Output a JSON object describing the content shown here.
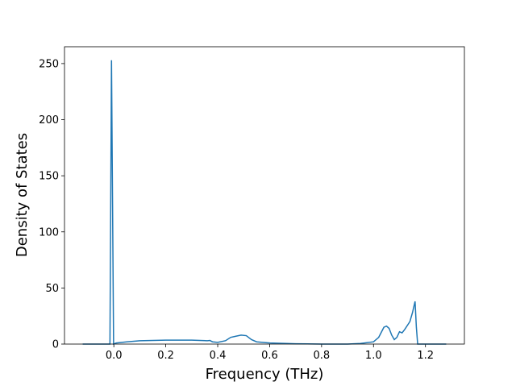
{
  "chart_data": {
    "type": "line",
    "xlabel": "Frequency (THz)",
    "ylabel": "Density of States",
    "x": [
      -0.12,
      -0.015,
      -0.009,
      -0.001,
      0.01,
      0.05,
      0.1,
      0.2,
      0.3,
      0.36,
      0.37,
      0.38,
      0.4,
      0.43,
      0.45,
      0.47,
      0.49,
      0.51,
      0.53,
      0.55,
      0.6,
      0.7,
      0.8,
      0.9,
      0.95,
      1.0,
      1.02,
      1.04,
      1.05,
      1.06,
      1.07,
      1.08,
      1.09,
      1.1,
      1.11,
      1.12,
      1.14,
      1.15,
      1.16,
      1.165,
      1.17,
      1.28
    ],
    "series": [
      {
        "color": "#1f77b4",
        "values": [
          0,
          0,
          253,
          0,
          1,
          2,
          3,
          3.5,
          3.5,
          3,
          3.2,
          2,
          1.5,
          3,
          6,
          7,
          8,
          7.5,
          4,
          2,
          1,
          0.3,
          0,
          0,
          0.5,
          2,
          6,
          15,
          16,
          14,
          8,
          4,
          6,
          11,
          10,
          13,
          20,
          28,
          38,
          15,
          0,
          0
        ]
      }
    ],
    "xlim": [
      -0.19,
      1.35
    ],
    "ylim": [
      0,
      265
    ],
    "xticks": [
      {
        "value": 0,
        "label": "0.0"
      },
      0.2,
      0.4,
      0.6,
      0.8,
      {
        "value": 1,
        "label": "1.0"
      },
      1.2
    ],
    "yticks": [
      0,
      50,
      100,
      150,
      200,
      250
    ]
  }
}
